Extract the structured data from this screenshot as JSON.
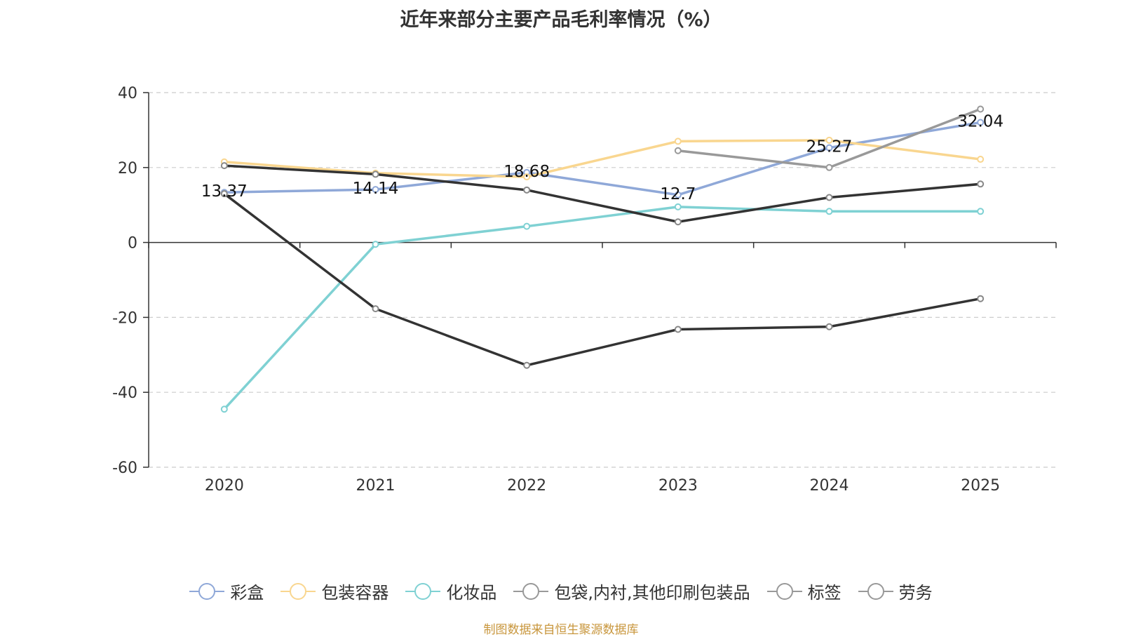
{
  "chart_data": {
    "type": "line",
    "title": "近年来部分主要产品毛利率情况（%）",
    "categories": [
      "2020",
      "2021",
      "2022",
      "2023",
      "2024",
      "2025"
    ],
    "ylim": [
      -60,
      40
    ],
    "yticks": [
      40,
      20,
      0,
      -20,
      -40,
      -60
    ],
    "grid": true,
    "legend_position": "bottom",
    "series": [
      {
        "name": "彩盒",
        "color": "#8fa8d8",
        "values": [
          13.37,
          14.14,
          18.68,
          12.7,
          25.27,
          32.04
        ],
        "labels": [
          "13.37",
          "14.14",
          "18.68",
          "12.7",
          "25.27",
          "32.04"
        ]
      },
      {
        "name": "包装容器",
        "color": "#f9d68f",
        "values": [
          21.5,
          18.5,
          17.5,
          27,
          27.3,
          22.2
        ]
      },
      {
        "name": "化妆品",
        "color": "#7fd1d3",
        "values": [
          -44.5,
          -0.5,
          4.3,
          9.5,
          8.3,
          8.3
        ]
      },
      {
        "name": "包袋,内衬,其他印刷包装品",
        "color": "#333333",
        "values": [
          20.5,
          18.2,
          14,
          5.5,
          12,
          15.6
        ]
      },
      {
        "name": "标签",
        "color": "#999999",
        "values": [
          null,
          null,
          null,
          24.5,
          20,
          35.6
        ]
      },
      {
        "name": "劳务",
        "color": "#333333",
        "values": [
          13,
          -17.7,
          -32.8,
          -23.2,
          -22.5,
          -15
        ]
      }
    ]
  },
  "legend_colors": [
    "#8fa8d8",
    "#f9d68f",
    "#7fd1d3",
    "#999999",
    "#999999",
    "#999999"
  ],
  "source_note": "制图数据来自恒生聚源数据库"
}
